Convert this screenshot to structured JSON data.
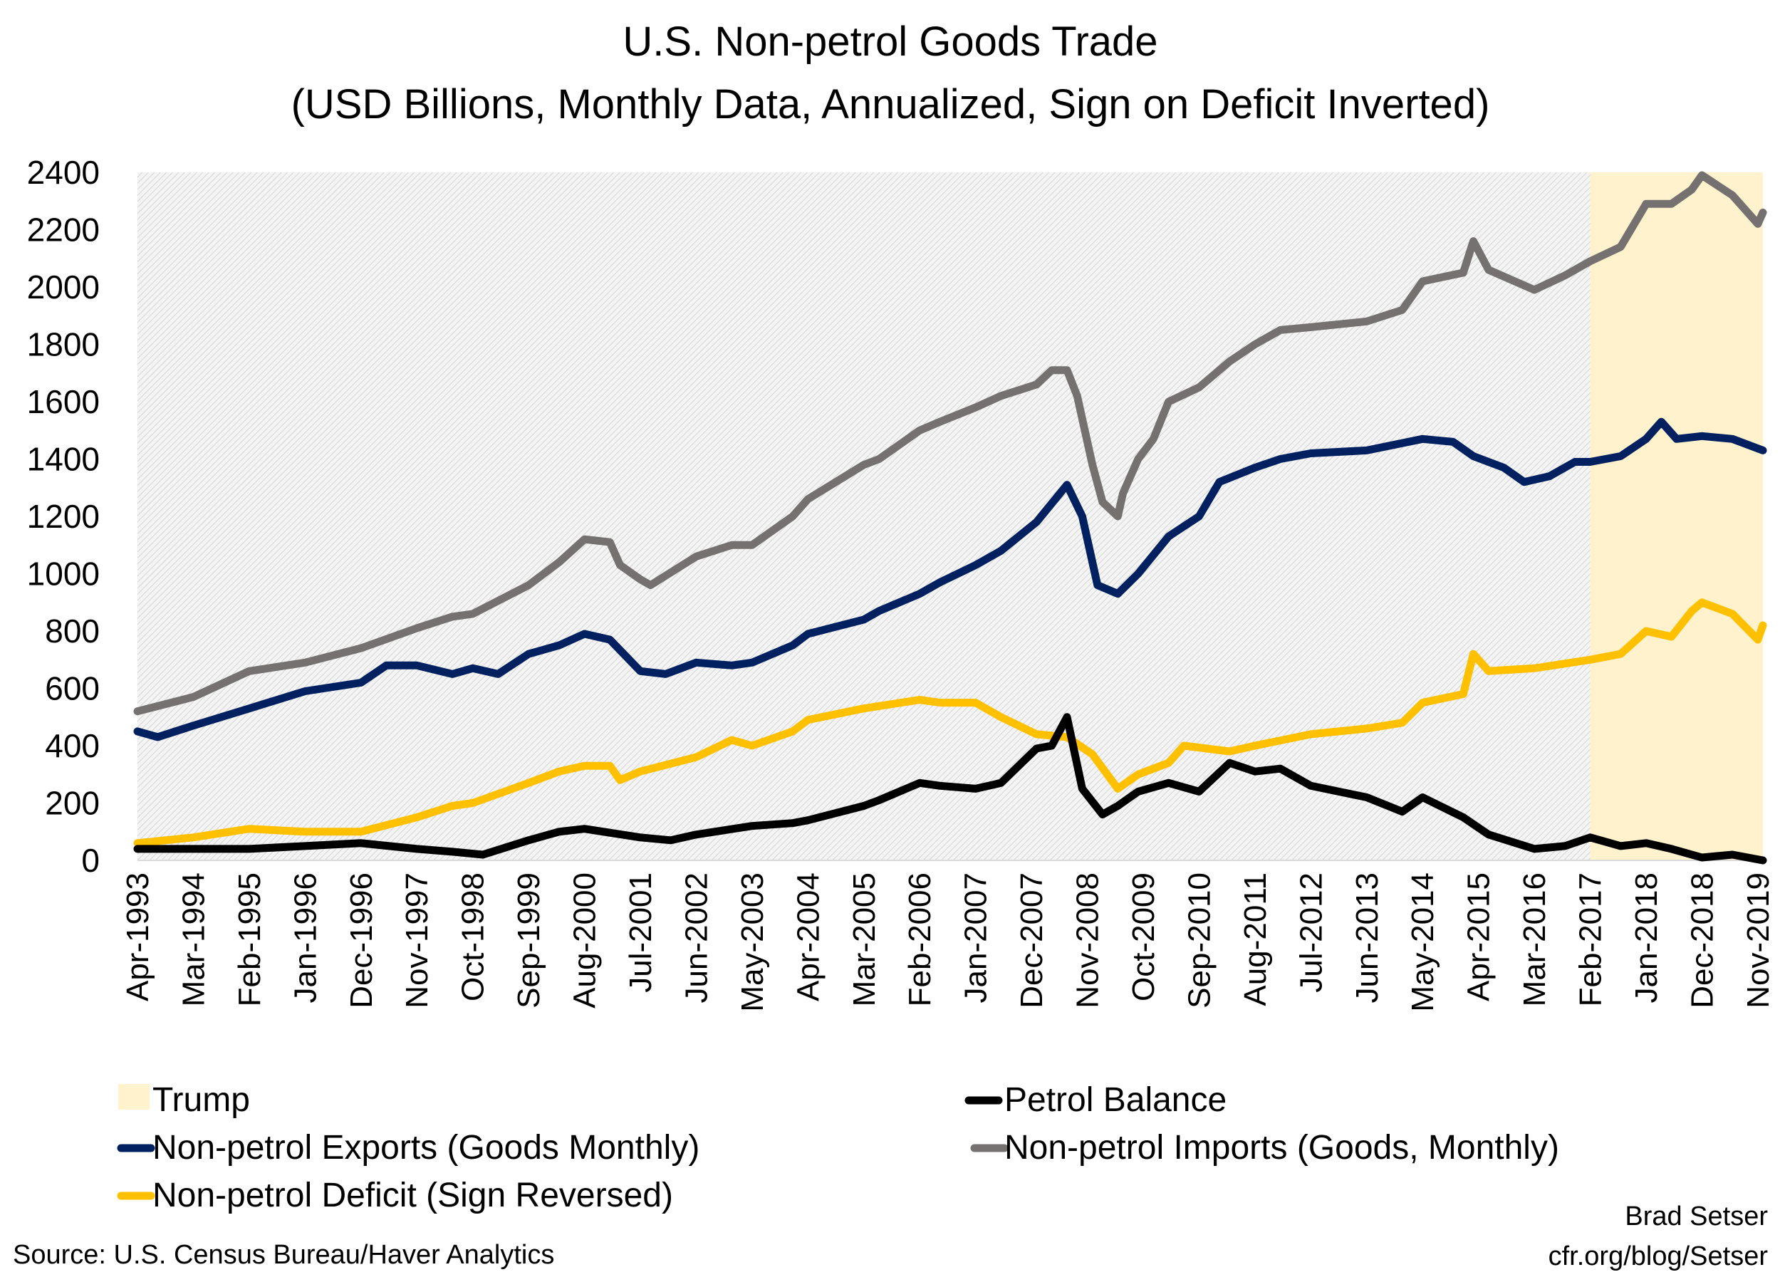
{
  "chart_data": {
    "type": "line",
    "title": "U.S. Non-petrol Goods Trade",
    "subtitle": "(USD Billions, Monthly Data, Annualized, Sign on Deficit Inverted)",
    "xlabel": "",
    "ylabel": "",
    "ylim": [
      0,
      2400
    ],
    "yticks": [
      0,
      200,
      400,
      600,
      800,
      1000,
      1200,
      1400,
      1600,
      1800,
      2000,
      2200,
      2400
    ],
    "xrange": [
      "1993-04",
      "2019-12"
    ],
    "xtick_labels": [
      "Apr-1993",
      "Mar-1994",
      "Feb-1995",
      "Jan-1996",
      "Dec-1996",
      "Nov-1997",
      "Oct-1998",
      "Sep-1999",
      "Aug-2000",
      "Jul-2001",
      "Jun-2002",
      "May-2003",
      "Apr-2004",
      "Mar-2005",
      "Feb-2006",
      "Jan-2007",
      "Dec-2007",
      "Nov-2008",
      "Oct-2009",
      "Sep-2010",
      "Aug-2011",
      "Jul-2012",
      "Jun-2013",
      "May-2014",
      "Apr-2015",
      "Mar-2016",
      "Feb-2017",
      "Jan-2018",
      "Dec-2018",
      "Nov-2019"
    ],
    "grid": false,
    "background": "hatched light gray",
    "shaded_region": {
      "name": "Trump",
      "from": "2017-02",
      "to": "2019-12",
      "color": "#FFF2CC"
    },
    "legend_placement": "bottom",
    "series": [
      {
        "name": "Petrol Balance",
        "color": "#000000",
        "points": [
          [
            "1993-04",
            40
          ],
          [
            "1994-03",
            40
          ],
          [
            "1995-02",
            40
          ],
          [
            "1996-01",
            50
          ],
          [
            "1996-12",
            60
          ],
          [
            "1997-11",
            40
          ],
          [
            "1998-06",
            30
          ],
          [
            "1998-12",
            20
          ],
          [
            "1999-09",
            70
          ],
          [
            "2000-03",
            100
          ],
          [
            "2000-08",
            110
          ],
          [
            "2001-07",
            80
          ],
          [
            "2002-01",
            70
          ],
          [
            "2002-06",
            90
          ],
          [
            "2003-05",
            120
          ],
          [
            "2004-01",
            130
          ],
          [
            "2004-04",
            140
          ],
          [
            "2005-03",
            190
          ],
          [
            "2005-06",
            210
          ],
          [
            "2006-02",
            270
          ],
          [
            "2006-06",
            260
          ],
          [
            "2007-01",
            250
          ],
          [
            "2007-06",
            270
          ],
          [
            "2008-01",
            390
          ],
          [
            "2008-04",
            400
          ],
          [
            "2008-07",
            500
          ],
          [
            "2008-10",
            250
          ],
          [
            "2009-02",
            160
          ],
          [
            "2009-05",
            190
          ],
          [
            "2009-09",
            240
          ],
          [
            "2010-03",
            270
          ],
          [
            "2010-09",
            240
          ],
          [
            "2011-03",
            340
          ],
          [
            "2011-08",
            310
          ],
          [
            "2012-01",
            320
          ],
          [
            "2012-07",
            260
          ],
          [
            "2013-06",
            220
          ],
          [
            "2014-01",
            170
          ],
          [
            "2014-05",
            220
          ],
          [
            "2015-01",
            150
          ],
          [
            "2015-06",
            90
          ],
          [
            "2016-03",
            40
          ],
          [
            "2016-09",
            50
          ],
          [
            "2017-02",
            80
          ],
          [
            "2017-08",
            50
          ],
          [
            "2018-01",
            60
          ],
          [
            "2018-06",
            40
          ],
          [
            "2018-12",
            10
          ],
          [
            "2019-06",
            20
          ],
          [
            "2019-12",
            0
          ]
        ]
      },
      {
        "name": "Non-petrol Exports (Goods Monthly)",
        "color": "#002060",
        "points": [
          [
            "1993-04",
            450
          ],
          [
            "1993-08",
            430
          ],
          [
            "1994-03",
            470
          ],
          [
            "1995-02",
            530
          ],
          [
            "1996-01",
            590
          ],
          [
            "1996-12",
            620
          ],
          [
            "1997-05",
            680
          ],
          [
            "1997-11",
            680
          ],
          [
            "1998-06",
            650
          ],
          [
            "1998-10",
            670
          ],
          [
            "1999-03",
            650
          ],
          [
            "1999-09",
            720
          ],
          [
            "2000-03",
            750
          ],
          [
            "2000-08",
            790
          ],
          [
            "2001-01",
            770
          ],
          [
            "2001-07",
            660
          ],
          [
            "2001-12",
            650
          ],
          [
            "2002-06",
            690
          ],
          [
            "2003-01",
            680
          ],
          [
            "2003-05",
            690
          ],
          [
            "2004-01",
            750
          ],
          [
            "2004-04",
            790
          ],
          [
            "2005-03",
            840
          ],
          [
            "2005-06",
            870
          ],
          [
            "2006-02",
            930
          ],
          [
            "2006-06",
            970
          ],
          [
            "2007-01",
            1030
          ],
          [
            "2007-06",
            1080
          ],
          [
            "2008-01",
            1180
          ],
          [
            "2008-07",
            1310
          ],
          [
            "2008-10",
            1200
          ],
          [
            "2009-01",
            960
          ],
          [
            "2009-05",
            930
          ],
          [
            "2009-09",
            1000
          ],
          [
            "2010-03",
            1130
          ],
          [
            "2010-09",
            1200
          ],
          [
            "2011-01",
            1320
          ],
          [
            "2011-08",
            1370
          ],
          [
            "2012-01",
            1400
          ],
          [
            "2012-07",
            1420
          ],
          [
            "2013-06",
            1430
          ],
          [
            "2014-05",
            1470
          ],
          [
            "2014-11",
            1460
          ],
          [
            "2015-03",
            1410
          ],
          [
            "2015-09",
            1370
          ],
          [
            "2016-01",
            1320
          ],
          [
            "2016-06",
            1340
          ],
          [
            "2016-11",
            1390
          ],
          [
            "2017-02",
            1390
          ],
          [
            "2017-08",
            1410
          ],
          [
            "2018-01",
            1470
          ],
          [
            "2018-04",
            1530
          ],
          [
            "2018-07",
            1470
          ],
          [
            "2018-12",
            1480
          ],
          [
            "2019-06",
            1470
          ],
          [
            "2019-12",
            1430
          ]
        ]
      },
      {
        "name": "Non-petrol Imports (Goods, Monthly)",
        "color": "#767171",
        "points": [
          [
            "1993-04",
            520
          ],
          [
            "1994-03",
            570
          ],
          [
            "1995-02",
            660
          ],
          [
            "1996-01",
            690
          ],
          [
            "1996-12",
            740
          ],
          [
            "1997-11",
            810
          ],
          [
            "1998-06",
            850
          ],
          [
            "1998-10",
            860
          ],
          [
            "1999-09",
            960
          ],
          [
            "2000-03",
            1040
          ],
          [
            "2000-08",
            1120
          ],
          [
            "2001-01",
            1110
          ],
          [
            "2001-03",
            1030
          ],
          [
            "2001-07",
            980
          ],
          [
            "2001-09",
            960
          ],
          [
            "2002-06",
            1060
          ],
          [
            "2003-01",
            1100
          ],
          [
            "2003-05",
            1100
          ],
          [
            "2004-01",
            1200
          ],
          [
            "2004-04",
            1260
          ],
          [
            "2005-03",
            1380
          ],
          [
            "2005-06",
            1400
          ],
          [
            "2006-02",
            1500
          ],
          [
            "2006-06",
            1530
          ],
          [
            "2007-01",
            1580
          ],
          [
            "2007-06",
            1620
          ],
          [
            "2008-01",
            1660
          ],
          [
            "2008-04",
            1710
          ],
          [
            "2008-07",
            1710
          ],
          [
            "2008-09",
            1620
          ],
          [
            "2008-12",
            1380
          ],
          [
            "2009-02",
            1250
          ],
          [
            "2009-05",
            1200
          ],
          [
            "2009-06",
            1280
          ],
          [
            "2009-09",
            1400
          ],
          [
            "2009-12",
            1470
          ],
          [
            "2010-03",
            1600
          ],
          [
            "2010-09",
            1650
          ],
          [
            "2011-03",
            1740
          ],
          [
            "2011-08",
            1800
          ],
          [
            "2012-01",
            1850
          ],
          [
            "2012-07",
            1860
          ],
          [
            "2013-06",
            1880
          ],
          [
            "2014-01",
            1920
          ],
          [
            "2014-05",
            2020
          ],
          [
            "2015-01",
            2050
          ],
          [
            "2015-03",
            2160
          ],
          [
            "2015-06",
            2060
          ],
          [
            "2016-03",
            1990
          ],
          [
            "2016-09",
            2040
          ],
          [
            "2017-02",
            2090
          ],
          [
            "2017-08",
            2140
          ],
          [
            "2018-01",
            2290
          ],
          [
            "2018-06",
            2290
          ],
          [
            "2018-10",
            2340
          ],
          [
            "2018-12",
            2390
          ],
          [
            "2019-06",
            2320
          ],
          [
            "2019-11",
            2220
          ],
          [
            "2019-12",
            2260
          ]
        ]
      },
      {
        "name": "Non-petrol Deficit (Sign Reversed)",
        "color": "#FFC000",
        "points": [
          [
            "1993-04",
            60
          ],
          [
            "1994-03",
            80
          ],
          [
            "1995-02",
            110
          ],
          [
            "1996-01",
            100
          ],
          [
            "1996-12",
            100
          ],
          [
            "1997-11",
            150
          ],
          [
            "1998-06",
            190
          ],
          [
            "1998-10",
            200
          ],
          [
            "1999-09",
            270
          ],
          [
            "2000-03",
            310
          ],
          [
            "2000-08",
            330
          ],
          [
            "2001-01",
            330
          ],
          [
            "2001-03",
            280
          ],
          [
            "2001-07",
            310
          ],
          [
            "2002-06",
            360
          ],
          [
            "2003-01",
            420
          ],
          [
            "2003-05",
            400
          ],
          [
            "2004-01",
            450
          ],
          [
            "2004-04",
            490
          ],
          [
            "2005-03",
            530
          ],
          [
            "2006-02",
            560
          ],
          [
            "2006-06",
            550
          ],
          [
            "2007-01",
            550
          ],
          [
            "2007-06",
            500
          ],
          [
            "2008-01",
            440
          ],
          [
            "2008-07",
            430
          ],
          [
            "2008-12",
            370
          ],
          [
            "2009-05",
            250
          ],
          [
            "2009-09",
            300
          ],
          [
            "2010-03",
            340
          ],
          [
            "2010-06",
            400
          ],
          [
            "2011-03",
            380
          ],
          [
            "2011-08",
            400
          ],
          [
            "2012-07",
            440
          ],
          [
            "2013-06",
            460
          ],
          [
            "2014-01",
            480
          ],
          [
            "2014-05",
            550
          ],
          [
            "2015-01",
            580
          ],
          [
            "2015-03",
            720
          ],
          [
            "2015-06",
            660
          ],
          [
            "2016-03",
            670
          ],
          [
            "2017-02",
            700
          ],
          [
            "2017-08",
            720
          ],
          [
            "2018-01",
            800
          ],
          [
            "2018-06",
            780
          ],
          [
            "2018-10",
            870
          ],
          [
            "2018-12",
            900
          ],
          [
            "2019-06",
            860
          ],
          [
            "2019-11",
            770
          ],
          [
            "2019-12",
            820
          ]
        ]
      }
    ]
  },
  "legend": {
    "trump": "Trump",
    "petrol": "Petrol Balance",
    "exports": "Non-petrol Exports (Goods Monthly)",
    "imports": "Non-petrol Imports (Goods, Monthly)",
    "deficit": "Non-petrol Deficit (Sign Reversed)"
  },
  "footer": {
    "source": "Source: U.S. Census Bureau/Haver Analytics",
    "author": "Brad Setser",
    "site": "cfr.org/blog/Setser"
  }
}
